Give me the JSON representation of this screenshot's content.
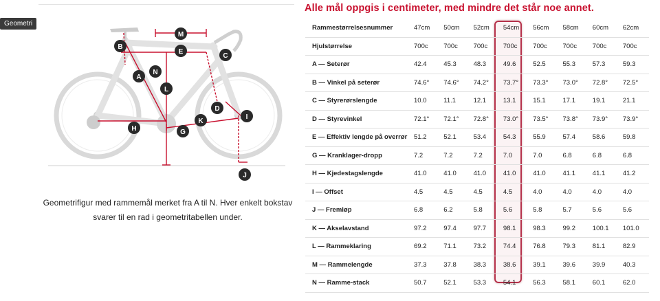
{
  "tag_label": "Geometri",
  "caption": "Geometrifigur med rammemål merket fra A til N. Hver enkelt bokstav svarer til en rad i geometritabellen under.",
  "heading": "Alle mål oppgis i centimeter, med mindre det står noe annet.",
  "accent_color": "#c8102e",
  "diagram_letters": [
    "B",
    "M",
    "E",
    "C",
    "A",
    "N",
    "L",
    "D",
    "I",
    "K",
    "H",
    "G",
    "J"
  ],
  "table": {
    "header_label": "Rammestørrelsesnummer",
    "sizes": [
      "47cm",
      "50cm",
      "52cm",
      "54cm",
      "56cm",
      "58cm",
      "60cm",
      "62cm"
    ],
    "highlighted_size": "54cm",
    "rows": [
      {
        "label": "Hjulstørrelse",
        "values": [
          "700c",
          "700c",
          "700c",
          "700c",
          "700c",
          "700c",
          "700c",
          "700c"
        ]
      },
      {
        "label": "A — Seterør",
        "values": [
          "42.4",
          "45.3",
          "48.3",
          "49.6",
          "52.5",
          "55.3",
          "57.3",
          "59.3"
        ]
      },
      {
        "label": "B — Vinkel på seterør",
        "values": [
          "74.6°",
          "74.6°",
          "74.2°",
          "73.7°",
          "73.3°",
          "73.0°",
          "72.8°",
          "72.5°"
        ]
      },
      {
        "label": "C — Styrerørslengde",
        "values": [
          "10.0",
          "11.1",
          "12.1",
          "13.1",
          "15.1",
          "17.1",
          "19.1",
          "21.1"
        ]
      },
      {
        "label": "D — Styrevinkel",
        "values": [
          "72.1°",
          "72.1°",
          "72.8°",
          "73.0°",
          "73.5°",
          "73.8°",
          "73.9°",
          "73.9°"
        ]
      },
      {
        "label": "E — Effektiv lengde på overrør",
        "values": [
          "51.2",
          "52.1",
          "53.4",
          "54.3",
          "55.9",
          "57.4",
          "58.6",
          "59.8"
        ]
      },
      {
        "label": "G — Kranklager-dropp",
        "values": [
          "7.2",
          "7.2",
          "7.2",
          "7.0",
          "7.0",
          "6.8",
          "6.8",
          "6.8"
        ]
      },
      {
        "label": "H — Kjedestagslengde",
        "values": [
          "41.0",
          "41.0",
          "41.0",
          "41.0",
          "41.0",
          "41.1",
          "41.1",
          "41.2"
        ]
      },
      {
        "label": "I — Offset",
        "values": [
          "4.5",
          "4.5",
          "4.5",
          "4.5",
          "4.0",
          "4.0",
          "4.0",
          "4.0"
        ]
      },
      {
        "label": "J — Fremløp",
        "values": [
          "6.8",
          "6.2",
          "5.8",
          "5.6",
          "5.8",
          "5.7",
          "5.6",
          "5.6"
        ]
      },
      {
        "label": "K — Akselavstand",
        "values": [
          "97.2",
          "97.4",
          "97.7",
          "98.1",
          "98.3",
          "99.2",
          "100.1",
          "101.0"
        ]
      },
      {
        "label": "L — Rammeklaring",
        "values": [
          "69.2",
          "71.1",
          "73.2",
          "74.4",
          "76.8",
          "79.3",
          "81.1",
          "82.9"
        ]
      },
      {
        "label": "M — Rammelengde",
        "values": [
          "37.3",
          "37.8",
          "38.3",
          "38.6",
          "39.1",
          "39.6",
          "39.9",
          "40.3"
        ]
      },
      {
        "label": "N — Ramme-stack",
        "values": [
          "50.7",
          "52.1",
          "53.3",
          "54.1",
          "56.3",
          "58.1",
          "60.1",
          "62.0"
        ]
      }
    ]
  }
}
